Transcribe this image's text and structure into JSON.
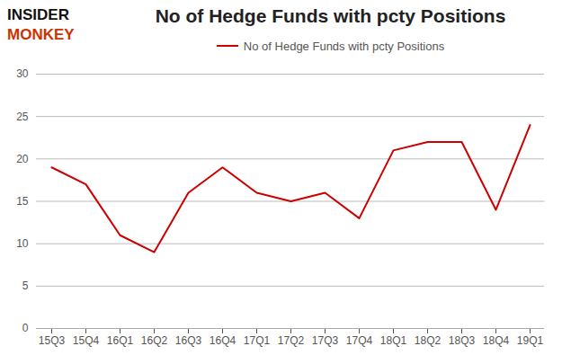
{
  "chart_data": {
    "type": "line",
    "title": "No of Hedge Funds with pcty Positions",
    "categories": [
      "15Q3",
      "15Q4",
      "16Q1",
      "16Q2",
      "16Q3",
      "16Q4",
      "17Q1",
      "17Q2",
      "17Q3",
      "17Q4",
      "18Q1",
      "18Q2",
      "18Q3",
      "18Q4",
      "19Q1"
    ],
    "series": [
      {
        "name": "No of Hedge Funds with pcty Positions",
        "color": "#cc0000",
        "values": [
          19,
          17,
          11,
          9,
          16,
          19,
          16,
          15,
          16,
          13,
          21,
          22,
          22,
          14,
          24
        ]
      }
    ],
    "ylim": [
      0,
      30
    ],
    "yticks": [
      0,
      5,
      10,
      15,
      20,
      25,
      30
    ],
    "grid": true,
    "legend": "top",
    "annotations": [
      {
        "text": "INSIDER",
        "color": "#111111"
      },
      {
        "text": "MONKEY",
        "color": "#cc3300"
      }
    ]
  }
}
